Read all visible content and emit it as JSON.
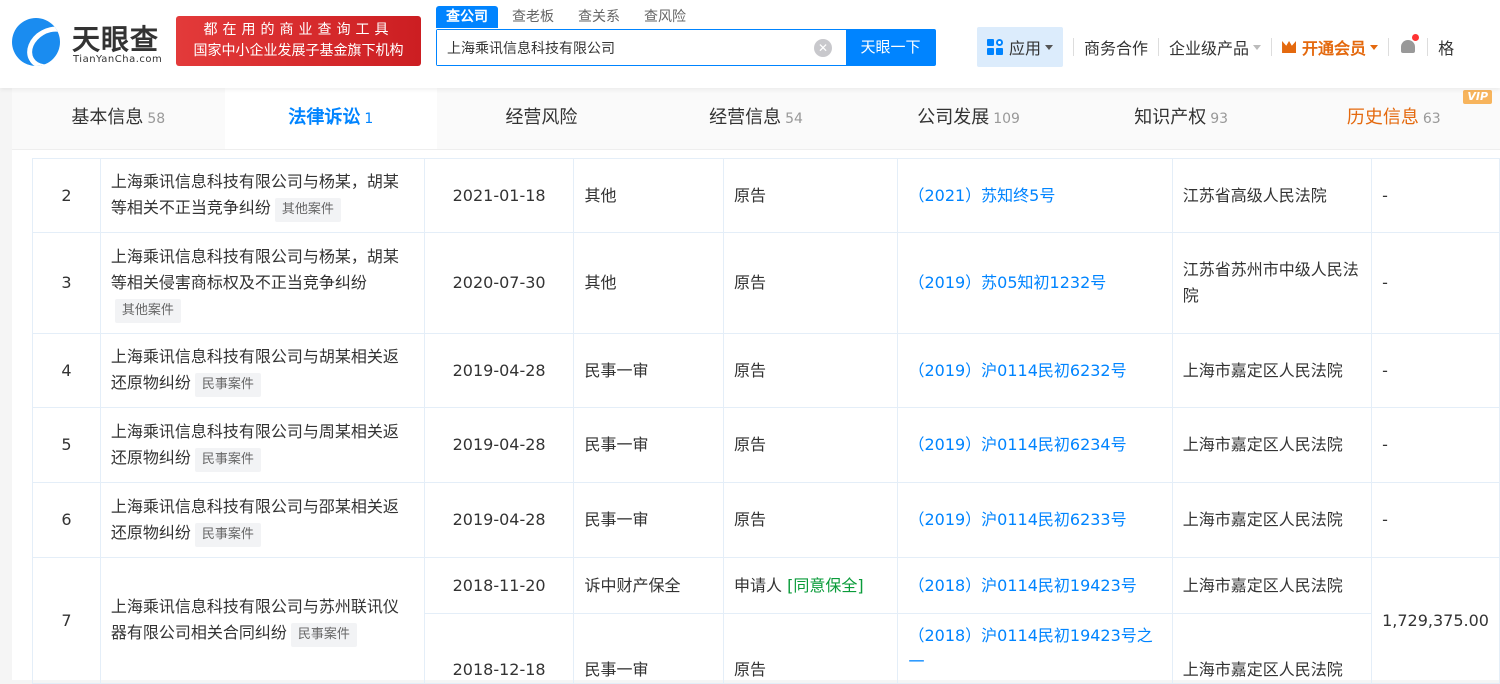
{
  "header": {
    "logo_cn": "天眼查",
    "logo_en": "TianYanCha.com",
    "slogan_line1": "都在用的商业查询工具",
    "slogan_line2": "国家中小企业发展子基金旗下机构",
    "search_tabs": [
      "查公司",
      "查老板",
      "查关系",
      "查风险"
    ],
    "search_value": "上海乘讯信息科技有限公司",
    "search_button": "天眼一下",
    "nav": {
      "app": "应用",
      "business": "商务合作",
      "enterprise": "企业级产品",
      "vip": "开通会员",
      "user": "格"
    }
  },
  "tabs": [
    {
      "label": "基本信息",
      "count": "58"
    },
    {
      "label": "法律诉讼",
      "count": "1"
    },
    {
      "label": "经营风险",
      "count": ""
    },
    {
      "label": "经营信息",
      "count": "54"
    },
    {
      "label": "公司发展",
      "count": "109"
    },
    {
      "label": "知识产权",
      "count": "93"
    },
    {
      "label": "历史信息",
      "count": "63",
      "badge": "VIP"
    }
  ],
  "rows": [
    {
      "no": "2",
      "title": "上海乘讯信息科技有限公司与杨某，胡某等相关不正当竞争纠纷",
      "tag": "其他案件",
      "date": "2021-01-18",
      "type": "其他",
      "role": "原告",
      "case": "（2021）苏知终5号",
      "court": "江苏省高级人民法院",
      "amount": "-"
    },
    {
      "no": "3",
      "title": "上海乘讯信息科技有限公司与杨某，胡某等相关侵害商标权及不正当竞争纠纷",
      "tag": "其他案件",
      "date": "2020-07-30",
      "type": "其他",
      "role": "原告",
      "case": "（2019）苏05知初1232号",
      "court": "江苏省苏州市中级人民法院",
      "amount": "-"
    },
    {
      "no": "4",
      "title": "上海乘讯信息科技有限公司与胡某相关返还原物纠纷",
      "tag": "民事案件",
      "date": "2019-04-28",
      "type": "民事一审",
      "role": "原告",
      "case": "（2019）沪0114民初6232号",
      "court": "上海市嘉定区人民法院",
      "amount": "-"
    },
    {
      "no": "5",
      "title": "上海乘讯信息科技有限公司与周某相关返还原物纠纷",
      "tag": "民事案件",
      "date": "2019-04-28",
      "type": "民事一审",
      "role": "原告",
      "case": "（2019）沪0114民初6234号",
      "court": "上海市嘉定区人民法院",
      "amount": "-"
    },
    {
      "no": "6",
      "title": "上海乘讯信息科技有限公司与邵某相关返还原物纠纷",
      "tag": "民事案件",
      "date": "2019-04-28",
      "type": "民事一审",
      "role": "原告",
      "case": "（2019）沪0114民初6233号",
      "court": "上海市嘉定区人民法院",
      "amount": "-"
    }
  ],
  "row7": {
    "no": "7",
    "title": "上海乘讯信息科技有限公司与苏州联讯仪器有限公司相关合同纠纷",
    "tag": "民事案件",
    "amount": "1,729,375.00",
    "subs": [
      {
        "date": "2018-11-20",
        "type": "诉中财产保全",
        "role": "申请人",
        "role_note": "[同意保全]",
        "case": "（2018）沪0114民初19423号",
        "court": "上海市嘉定区人民法院"
      },
      {
        "date": "2018-12-18",
        "type": "民事一审",
        "role": "原告",
        "role_note": "",
        "case": "（2018）沪0114民初19423号之一",
        "court": "上海市嘉定区人民法院"
      }
    ]
  },
  "colors": {
    "brand": "#0084ff",
    "vip": "#e4690e",
    "slogan": "#d8282c",
    "status_green": "#0a9b3a"
  }
}
